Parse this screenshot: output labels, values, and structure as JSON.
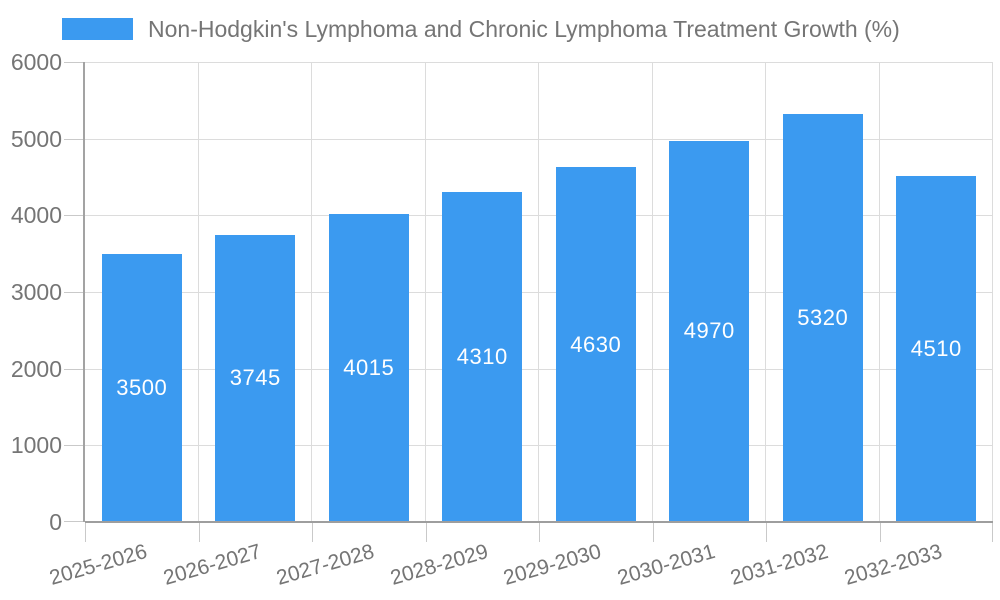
{
  "legend": {
    "label": "Non-Hodgkin's Lymphoma and Chronic Lymphoma Treatment Growth (%)",
    "swatch_color": "#3B9AF0"
  },
  "chart_data": {
    "type": "bar",
    "title": "Non-Hodgkin's Lymphoma and Chronic Lymphoma Treatment Growth (%)",
    "series_name": "Non-Hodgkin's Lymphoma and Chronic Lymphoma Treatment Growth (%)",
    "categories": [
      "2025-2026",
      "2026-2027",
      "2027-2028",
      "2028-2029",
      "2029-2030",
      "2030-2031",
      "2031-2032",
      "2032-2033"
    ],
    "values": [
      3500,
      3745,
      4015,
      4310,
      4630,
      4970,
      5320,
      4510
    ],
    "xlabel": "",
    "ylabel": "",
    "ylim": [
      0,
      6000
    ],
    "yticks": [
      0,
      1000,
      2000,
      3000,
      4000,
      5000,
      6000
    ],
    "grid": true,
    "legend_position": "top-left",
    "value_labels": "inside-center",
    "x_label_rotation_deg": -16,
    "bar_color": "#3B9AF0",
    "value_label_color": "#FFFFFF",
    "axis_text_color": "#757575",
    "gridline_color": "#DCDCDC",
    "tick_color": "#C9C9C9",
    "axis_line_color": "#A3A3A3",
    "baseline_color": "#9E9E9E",
    "background_color": "#FFFFFF"
  }
}
